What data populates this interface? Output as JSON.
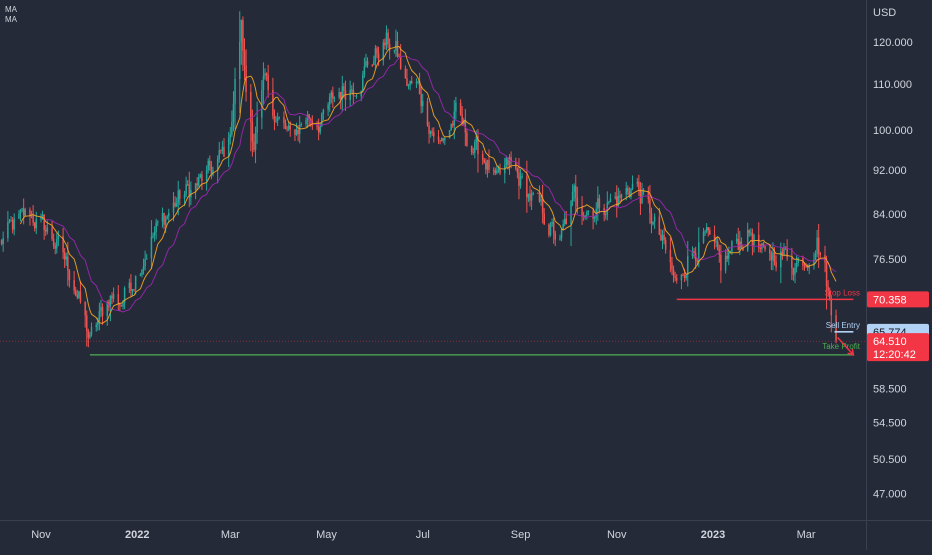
{
  "indicators": [
    {
      "label": "MA",
      "color": "#9c27b0"
    },
    {
      "label": "MA",
      "color": "#f5a623"
    }
  ],
  "colors": {
    "background": "#242a38",
    "up_candle": "#26a69a",
    "down_candle": "#ef5350",
    "stop_loss": "#f23645",
    "sell_entry": "#b2d2f5",
    "take_profit": "#4caf50"
  },
  "chart_data": {
    "type": "candlestick",
    "currency": "USD",
    "y_scale": "log",
    "ylim": [
      44.5,
      131
    ],
    "y_ticks": [
      {
        "label": "120.000",
        "value": 120
      },
      {
        "label": "110.000",
        "value": 110
      },
      {
        "label": "100.000",
        "value": 100
      },
      {
        "label": "92.000",
        "value": 92
      },
      {
        "label": "84.000",
        "value": 84
      },
      {
        "label": "76.500",
        "value": 76.5
      },
      {
        "label": "58.500",
        "value": 58.5
      },
      {
        "label": "54.500",
        "value": 54.5
      },
      {
        "label": "50.500",
        "value": 50.5
      },
      {
        "label": "47.000",
        "value": 47
      }
    ],
    "x_ticks": [
      {
        "label": "Nov",
        "date": "2021-11-01",
        "bold": false
      },
      {
        "label": "2022",
        "date": "2022-01-01",
        "bold": true
      },
      {
        "label": "Mar",
        "date": "2022-03-01",
        "bold": false
      },
      {
        "label": "May",
        "date": "2022-05-01",
        "bold": false
      },
      {
        "label": "Jul",
        "date": "2022-07-01",
        "bold": false
      },
      {
        "label": "Sep",
        "date": "2022-09-01",
        "bold": false
      },
      {
        "label": "Nov",
        "date": "2022-11-01",
        "bold": false
      },
      {
        "label": "2023",
        "date": "2023-01-01",
        "bold": true
      },
      {
        "label": "Mar",
        "date": "2023-03-01",
        "bold": false
      }
    ],
    "xlim": [
      "2021-10-06",
      "2023-04-08"
    ],
    "price_path": [
      [
        "2021-10-06",
        79
      ],
      [
        "2021-10-15",
        82
      ],
      [
        "2021-10-25",
        84
      ],
      [
        "2021-11-05",
        81
      ],
      [
        "2021-11-13",
        78
      ],
      [
        "2021-11-22",
        73
      ],
      [
        "2021-11-29",
        67
      ],
      [
        "2021-12-02",
        64.5
      ],
      [
        "2021-12-07",
        67
      ],
      [
        "2021-12-15",
        71
      ],
      [
        "2021-12-22",
        70
      ],
      [
        "2022-01-01",
        75
      ],
      [
        "2022-01-10",
        80
      ],
      [
        "2022-01-20",
        84
      ],
      [
        "2022-01-28",
        87
      ],
      [
        "2022-02-07",
        89
      ],
      [
        "2022-02-18",
        92
      ],
      [
        "2022-02-28",
        97
      ],
      [
        "2022-03-05",
        114
      ],
      [
        "2022-03-08",
        124
      ],
      [
        "2022-03-11",
        108
      ],
      [
        "2022-03-16",
        98
      ],
      [
        "2022-03-23",
        110
      ],
      [
        "2022-03-30",
        103
      ],
      [
        "2022-04-08",
        98
      ],
      [
        "2022-04-18",
        103
      ],
      [
        "2022-04-28",
        102
      ],
      [
        "2022-05-08",
        108
      ],
      [
        "2022-05-18",
        110
      ],
      [
        "2022-05-28",
        115
      ],
      [
        "2022-06-08",
        120
      ],
      [
        "2022-06-14",
        118
      ],
      [
        "2022-06-20",
        110
      ],
      [
        "2022-06-28",
        109
      ],
      [
        "2022-07-05",
        102
      ],
      [
        "2022-07-12",
        97
      ],
      [
        "2022-07-22",
        103
      ],
      [
        "2022-08-01",
        97
      ],
      [
        "2022-08-10",
        94
      ],
      [
        "2022-08-17",
        89
      ],
      [
        "2022-08-25",
        93
      ],
      [
        "2022-09-05",
        88
      ],
      [
        "2022-09-15",
        84
      ],
      [
        "2022-09-26",
        79
      ],
      [
        "2022-10-05",
        87
      ],
      [
        "2022-10-15",
        85
      ],
      [
        "2022-10-25",
        86
      ],
      [
        "2022-11-05",
        87
      ],
      [
        "2022-11-12",
        90
      ],
      [
        "2022-11-22",
        84
      ],
      [
        "2022-12-01",
        78
      ],
      [
        "2022-12-09",
        72
      ],
      [
        "2022-12-16",
        77
      ],
      [
        "2022-12-27",
        80
      ],
      [
        "2023-01-06",
        75
      ],
      [
        "2023-01-16",
        79
      ],
      [
        "2023-01-25",
        81
      ],
      [
        "2023-02-03",
        76
      ],
      [
        "2023-02-12",
        78
      ],
      [
        "2023-02-22",
        76
      ],
      [
        "2023-03-01",
        77
      ],
      [
        "2023-03-08",
        80
      ],
      [
        "2023-03-13",
        75
      ],
      [
        "2023-03-17",
        68
      ],
      [
        "2023-03-20",
        64.51
      ]
    ],
    "moving_averages": [
      {
        "name": "MA",
        "color": "#9c27b0",
        "period": 20
      },
      {
        "name": "MA",
        "color": "#f5a623",
        "period": 9
      }
    ],
    "levels": [
      {
        "name": "Stop Loss",
        "value": 70.358,
        "price_label": "70.358",
        "color": "#f23645",
        "start": "2022-12-09",
        "end": "2023-03-31"
      },
      {
        "name": "Sell Entry",
        "value": 65.774,
        "price_label": "65.774",
        "color": "#b2d2f5",
        "start": "2023-03-19",
        "end": "2023-03-31"
      },
      {
        "name": "Take Profit",
        "value": 62.7,
        "price_label": "",
        "color": "#4caf50",
        "start": "2021-12-02",
        "end": "2023-03-31"
      }
    ],
    "last_price": {
      "value": 64.51,
      "label": "64.510",
      "countdown": "12:20:42",
      "color": "#f23645"
    },
    "projection": {
      "from_date": "2023-03-21",
      "from_value": 65.0,
      "to_date": "2023-03-31",
      "to_value": 62.7,
      "color": "#f23645"
    }
  }
}
